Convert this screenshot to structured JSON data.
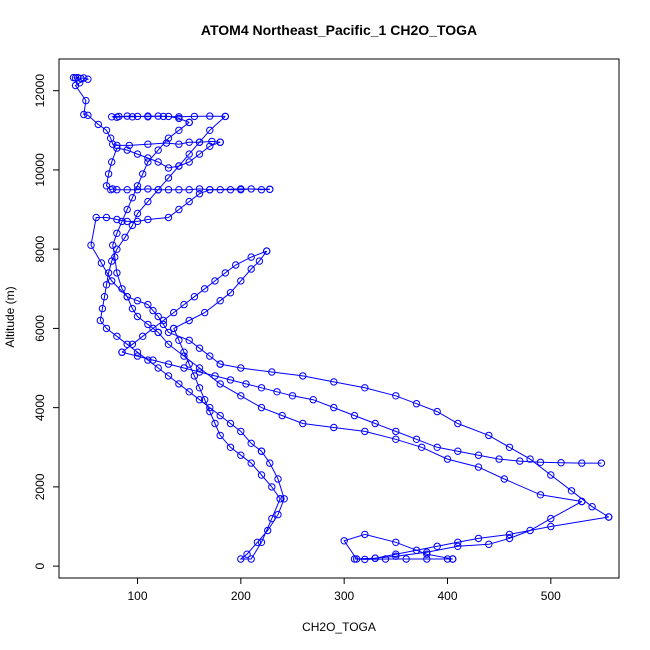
{
  "chart_data": {
    "type": "line",
    "title": "ATOM4 Northeast_Pacific_1 CH2O_TOGA",
    "xlabel": "CH2O_TOGA",
    "ylabel": "Altitude (m)",
    "xlim": [
      24,
      566
    ],
    "ylim": [
      -300,
      12800
    ],
    "x_ticks": [
      100,
      200,
      300,
      400,
      500
    ],
    "y_ticks": [
      0,
      2000,
      4000,
      6000,
      8000,
      10000,
      12000
    ],
    "grid": false,
    "legend": "none",
    "series_color": "#0000ff",
    "series": [
      {
        "x": [
          38,
          40,
          42,
          45,
          48,
          52,
          44,
          40,
          50,
          48,
          52,
          62,
          70,
          74,
          76,
          80,
          92,
          110,
          128,
          140,
          150,
          160,
          172,
          180
        ],
        "y": [
          12330,
          12320,
          12330,
          12310,
          12320,
          12290,
          12200,
          12130,
          11750,
          11400,
          11380,
          11150,
          11000,
          10800,
          10650,
          10620,
          10620,
          10650,
          10680,
          10650,
          10700,
          10700,
          10720,
          10700
        ]
      },
      {
        "x": [
          180,
          170,
          160,
          150,
          140,
          130,
          120,
          110,
          100,
          90,
          80,
          75,
          72,
          70,
          74,
          76,
          80,
          90,
          100,
          110,
          120,
          130,
          140,
          150,
          160,
          170,
          180,
          190,
          200,
          210,
          220,
          228
        ],
        "y": [
          10700,
          10600,
          10400,
          10200,
          10100,
          10050,
          10200,
          10300,
          10400,
          10500,
          10550,
          10200,
          9900,
          9600,
          9500,
          9520,
          9500,
          9500,
          9500,
          9520,
          9500,
          9500,
          9500,
          9500,
          9520,
          9500,
          9500,
          9500,
          9500,
          9520,
          9500,
          9510
        ]
      },
      {
        "x": [
          228,
          200,
          170,
          160,
          150,
          140,
          130,
          110,
          100,
          90,
          80,
          70,
          60,
          55,
          65,
          75,
          90,
          100,
          110,
          115,
          120,
          125,
          130,
          150,
          160,
          170,
          180
        ],
        "y": [
          9510,
          9520,
          9500,
          9400,
          9200,
          9000,
          8800,
          8750,
          8700,
          8700,
          8750,
          8800,
          8800,
          8100,
          7650,
          7200,
          6800,
          6700,
          6600,
          6450,
          6300,
          6100,
          5900,
          5700,
          5500,
          5300,
          5100
        ]
      },
      {
        "x": [
          180,
          200,
          230,
          260,
          290,
          320,
          350,
          370,
          390,
          410,
          440,
          460,
          480,
          500,
          520,
          540,
          556
        ],
        "y": [
          5100,
          5000,
          4900,
          4800,
          4650,
          4500,
          4300,
          4100,
          3900,
          3600,
          3300,
          3000,
          2700,
          2300,
          1900,
          1500,
          1240
        ]
      },
      {
        "x": [
          556,
          500,
          460,
          430,
          410,
          390,
          370,
          350,
          330,
          310,
          320,
          340,
          360,
          380,
          400,
          405
        ],
        "y": [
          1240,
          1000,
          800,
          700,
          600,
          500,
          400,
          300,
          200,
          180,
          170,
          180,
          180,
          180,
          180,
          180
        ]
      },
      {
        "x": [
          405,
          380,
          350,
          320,
          300,
          312,
          330,
          350,
          380,
          410,
          440,
          460,
          480,
          500,
          530
        ],
        "y": [
          180,
          300,
          600,
          800,
          640,
          180,
          200,
          250,
          350,
          500,
          550,
          700,
          900,
          1200,
          1630
        ]
      },
      {
        "x": [
          530,
          490,
          455,
          430,
          400,
          375,
          350,
          320,
          290,
          260,
          240,
          220,
          200,
          180,
          160,
          145,
          130,
          120
        ],
        "y": [
          1630,
          1800,
          2200,
          2500,
          2700,
          3000,
          3200,
          3400,
          3500,
          3600,
          3800,
          4000,
          4300,
          4600,
          5000,
          5300,
          5600,
          5900
        ]
      },
      {
        "x": [
          120,
          110,
          100,
          95,
          90,
          85,
          80,
          78,
          76,
          80,
          85,
          90,
          95,
          100,
          105,
          110,
          120,
          130,
          140,
          150
        ],
        "y": [
          5900,
          6100,
          6300,
          6500,
          6800,
          7000,
          7400,
          7800,
          8100,
          8400,
          8700,
          9000,
          9300,
          9600,
          9900,
          10200,
          10500,
          10800,
          11000,
          11200
        ]
      },
      {
        "x": [
          150,
          140,
          130,
          120,
          110,
          100,
          90,
          80,
          75,
          82,
          95,
          110,
          125,
          140,
          155,
          170,
          185
        ],
        "y": [
          11200,
          11300,
          11350,
          11360,
          11340,
          11350,
          11360,
          11330,
          11340,
          11350,
          11340,
          11360,
          11350,
          11340,
          11350,
          11360,
          11350
        ]
      },
      {
        "x": [
          185,
          170,
          160,
          150,
          140,
          130,
          120,
          110,
          100,
          95,
          88,
          80,
          75,
          72,
          70,
          68,
          66,
          64,
          70,
          80,
          90,
          100,
          110,
          120,
          130,
          140,
          150,
          160,
          170,
          180,
          190,
          200,
          210,
          220
        ],
        "y": [
          11350,
          11000,
          10700,
          10400,
          10100,
          9800,
          9500,
          9200,
          8900,
          8600,
          8300,
          8000,
          7700,
          7400,
          7100,
          6800,
          6500,
          6200,
          6000,
          5800,
          5600,
          5400,
          5200,
          5000,
          4800,
          4600,
          4400,
          4200,
          4000,
          3800,
          3600,
          3400,
          3100,
          2900
        ]
      },
      {
        "x": [
          220,
          228,
          236,
          242,
          236,
          226,
          216,
          206,
          200,
          210,
          220,
          230,
          238
        ],
        "y": [
          2900,
          2600,
          2200,
          1700,
          1300,
          900,
          600,
          300,
          180,
          180,
          600,
          1200,
          1700
        ]
      },
      {
        "x": [
          238,
          230,
          220,
          210,
          200,
          190,
          180,
          175,
          170,
          165,
          160,
          155,
          150,
          145,
          140,
          135
        ],
        "y": [
          1700,
          2000,
          2300,
          2600,
          2800,
          3000,
          3300,
          3600,
          3900,
          4200,
          4500,
          4800,
          5100,
          5400,
          5700,
          6000
        ]
      },
      {
        "x": [
          135,
          150,
          165,
          180,
          190,
          200,
          210,
          218,
          225
        ],
        "y": [
          6000,
          6200,
          6400,
          6700,
          6900,
          7200,
          7500,
          7700,
          7950
        ]
      },
      {
        "x": [
          225,
          210,
          195,
          185,
          175,
          165,
          155,
          145,
          135,
          125,
          115,
          105,
          95,
          85
        ],
        "y": [
          7950,
          7800,
          7600,
          7400,
          7200,
          7000,
          6800,
          6600,
          6400,
          6200,
          6000,
          5800,
          5600,
          5400
        ]
      },
      {
        "x": [
          85,
          100,
          115,
          130,
          145,
          160,
          175,
          190,
          205,
          220,
          235,
          250,
          270,
          290,
          310,
          330,
          350,
          370,
          390,
          410,
          430,
          450,
          470,
          490,
          510,
          530,
          549
        ],
        "y": [
          5400,
          5300,
          5200,
          5100,
          5000,
          4900,
          4800,
          4700,
          4600,
          4500,
          4400,
          4300,
          4200,
          4000,
          3800,
          3600,
          3400,
          3200,
          3000,
          2900,
          2800,
          2700,
          2650,
          2620,
          2610,
          2600,
          2600
        ]
      }
    ]
  }
}
